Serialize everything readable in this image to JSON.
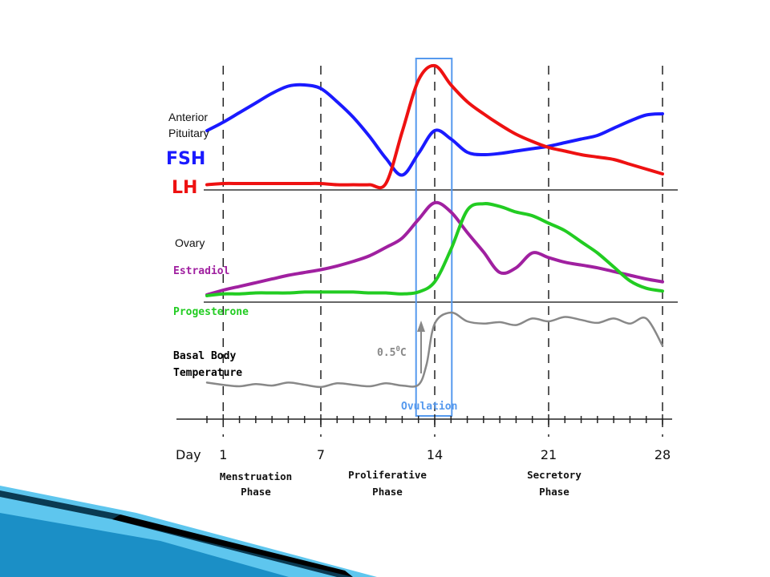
{
  "chart_data": {
    "type": "line",
    "x_axis": {
      "label": "Day",
      "range": [
        0,
        28
      ],
      "ticks": [
        1,
        7,
        14,
        21,
        28
      ],
      "phases": [
        {
          "line1": "Menstruation",
          "line2": "Phase"
        },
        {
          "line1": "Proliferative",
          "line2": "Phase"
        },
        {
          "line1": "Secretory",
          "line2": "Phase"
        }
      ]
    },
    "panels": {
      "pituitary": {
        "label_line1": "Anterior",
        "label_line2": "Pituitary",
        "series": [
          {
            "name": "FSH",
            "color": "#1a1aff",
            "x": [
              0,
              1,
              2,
              3,
              4,
              5,
              6,
              7,
              8,
              9,
              10,
              11,
              12,
              13,
              14,
              15,
              16,
              17,
              18,
              19,
              20,
              21,
              22,
              23,
              24,
              25,
              26,
              27,
              28
            ],
            "y": [
              0.46,
              0.53,
              0.61,
              0.69,
              0.77,
              0.83,
              0.84,
              0.81,
              0.7,
              0.57,
              0.41,
              0.23,
              0.09,
              0.27,
              0.46,
              0.39,
              0.28,
              0.26,
              0.27,
              0.29,
              0.31,
              0.33,
              0.36,
              0.39,
              0.42,
              0.48,
              0.54,
              0.59,
              0.6
            ]
          },
          {
            "name": "LH",
            "color": "#ee1111",
            "x": [
              0,
              1,
              2,
              3,
              4,
              5,
              6,
              7,
              8,
              9,
              10,
              11,
              12,
              13,
              14,
              15,
              16,
              17,
              18,
              19,
              20,
              21,
              22,
              23,
              24,
              25,
              26,
              27,
              28
            ],
            "y": [
              0.01,
              0.02,
              0.02,
              0.02,
              0.02,
              0.02,
              0.02,
              0.02,
              0.01,
              0.01,
              0.01,
              0.02,
              0.45,
              0.88,
              1.0,
              0.84,
              0.7,
              0.6,
              0.51,
              0.43,
              0.37,
              0.32,
              0.29,
              0.26,
              0.24,
              0.22,
              0.18,
              0.14,
              0.1
            ]
          }
        ]
      },
      "ovary": {
        "label": "Ovary",
        "series": [
          {
            "name": "Estradiol",
            "color": "#a020a0",
            "x": [
              0,
              1,
              2,
              3,
              4,
              5,
              6,
              7,
              8,
              9,
              10,
              11,
              12,
              13,
              14,
              15,
              16,
              17,
              18,
              19,
              20,
              21,
              22,
              23,
              24,
              25,
              26,
              27,
              28
            ],
            "y": [
              0.01,
              0.06,
              0.1,
              0.14,
              0.18,
              0.22,
              0.25,
              0.28,
              0.32,
              0.37,
              0.43,
              0.52,
              0.62,
              0.82,
              1.0,
              0.9,
              0.68,
              0.47,
              0.25,
              0.3,
              0.46,
              0.41,
              0.36,
              0.33,
              0.3,
              0.26,
              0.22,
              0.18,
              0.15
            ]
          },
          {
            "name": "Progesterone",
            "color": "#22cc22",
            "x": [
              0,
              1,
              2,
              3,
              4,
              5,
              6,
              7,
              8,
              9,
              10,
              11,
              12,
              13,
              14,
              15,
              16,
              17,
              18,
              19,
              20,
              21,
              22,
              23,
              24,
              25,
              26,
              27,
              28
            ],
            "y": [
              0.0,
              0.02,
              0.02,
              0.03,
              0.03,
              0.03,
              0.04,
              0.04,
              0.04,
              0.04,
              0.03,
              0.03,
              0.02,
              0.04,
              0.15,
              0.5,
              0.92,
              0.99,
              0.96,
              0.9,
              0.86,
              0.78,
              0.7,
              0.58,
              0.46,
              0.31,
              0.16,
              0.08,
              0.05
            ]
          }
        ]
      },
      "temperature": {
        "label_line1": "Basal Body",
        "label_line2": "Temperature",
        "annotation_base": "0.5",
        "annotation_sup": "0",
        "annotation_unit": "C",
        "series": [
          {
            "name": "Basal Body Temperature",
            "color": "#888888",
            "x": [
              0,
              1,
              2,
              3,
              4,
              5,
              6,
              7,
              8,
              9,
              10,
              11,
              12,
              13,
              13.5,
              14,
              15,
              16,
              17,
              18,
              19,
              20,
              21,
              22,
              23,
              24,
              25,
              26,
              27,
              28
            ],
            "y": [
              0.05,
              0.02,
              0.0,
              0.03,
              0.01,
              0.05,
              0.02,
              -0.01,
              0.04,
              0.02,
              0.0,
              0.04,
              0.01,
              0.02,
              0.3,
              0.85,
              1.0,
              0.88,
              0.85,
              0.87,
              0.83,
              0.92,
              0.88,
              0.94,
              0.9,
              0.86,
              0.92,
              0.85,
              0.92,
              0.55
            ]
          }
        ]
      }
    },
    "ovulation": {
      "label": "Ovulation",
      "x_start": 13,
      "x_end": 15,
      "color": "#5599ee"
    }
  },
  "slide_decor": {
    "colors": [
      "#1b8fc6",
      "#5ec6ee",
      "#0a3a52",
      "#000000"
    ]
  }
}
